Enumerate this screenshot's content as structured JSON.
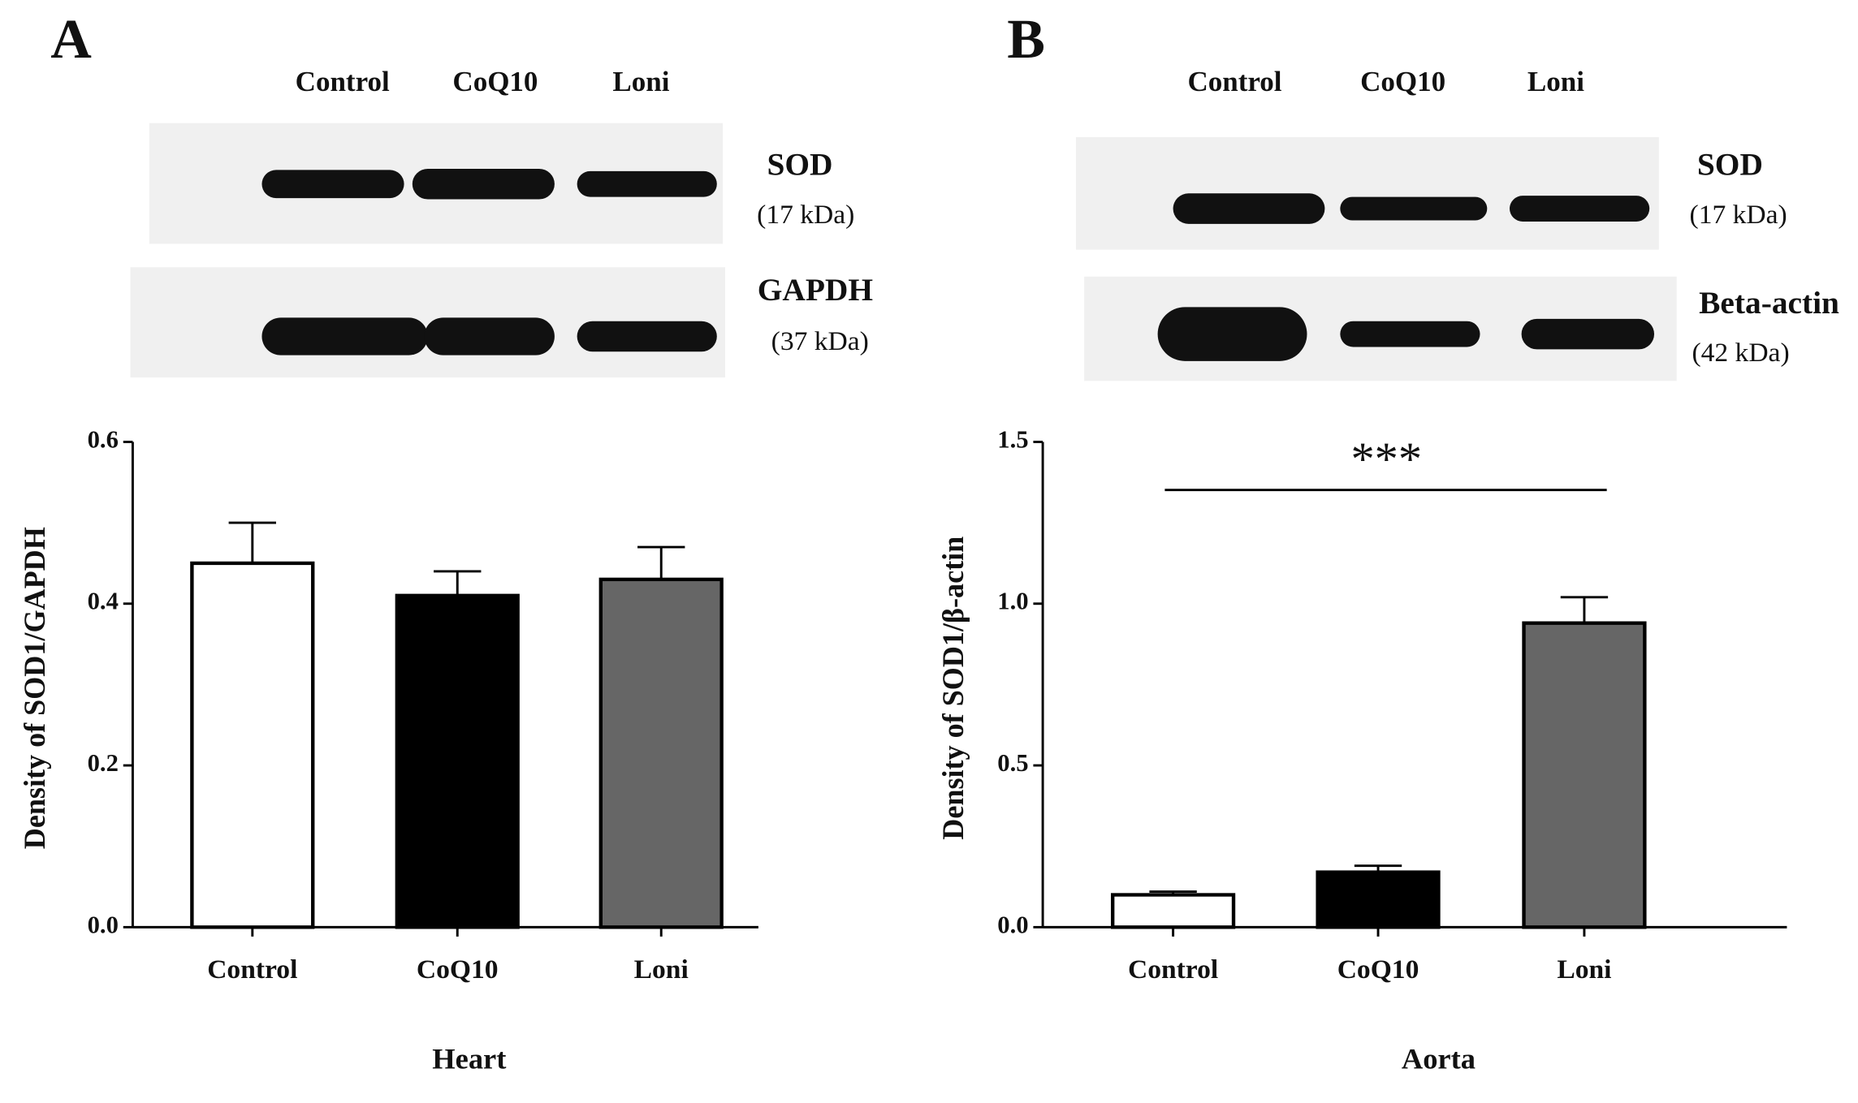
{
  "chart_data": [
    {
      "type": "bar",
      "panel": "A",
      "lanes": [
        "Control",
        "CoQ10",
        "Loni"
      ],
      "blots": [
        {
          "label": "SOD",
          "size": "(17 kDa)"
        },
        {
          "label": "GAPDH",
          "size": "(37 kDa)"
        }
      ],
      "categories": [
        "Control",
        "CoQ10",
        "Loni"
      ],
      "values": [
        0.45,
        0.41,
        0.43
      ],
      "errors": [
        0.05,
        0.03,
        0.04
      ],
      "colors": [
        "#ffffff",
        "#000000",
        "#666666"
      ],
      "ylim": [
        0,
        0.6
      ],
      "yticks": [
        {
          "value": 0,
          "label": "0.0"
        },
        0.2,
        0.4,
        0.6
      ],
      "ylabel": "Density of SOD1/GAPDH",
      "xlabel": "Heart"
    },
    {
      "type": "bar",
      "panel": "B",
      "lanes": [
        "Control",
        "CoQ10",
        "Loni"
      ],
      "blots": [
        {
          "label": "SOD",
          "size": "(17 kDa)"
        },
        {
          "label": "Beta-actin",
          "size": "(42 kDa)"
        }
      ],
      "categories": [
        "Control",
        "CoQ10",
        "Loni"
      ],
      "values": [
        0.1,
        0.17,
        0.94
      ],
      "errors": [
        0.01,
        0.02,
        0.08
      ],
      "colors": [
        "#ffffff",
        "#000000",
        "#666666"
      ],
      "ylim": [
        0,
        1.5
      ],
      "yticks": [
        {
          "value": 0,
          "label": "0.0"
        },
        0.5,
        {
          "value": 1,
          "label": "1.0"
        },
        1.5
      ],
      "ylabel": "Density of SOD1/β-actin",
      "xlabel": "Aorta",
      "annotation": "***"
    }
  ]
}
